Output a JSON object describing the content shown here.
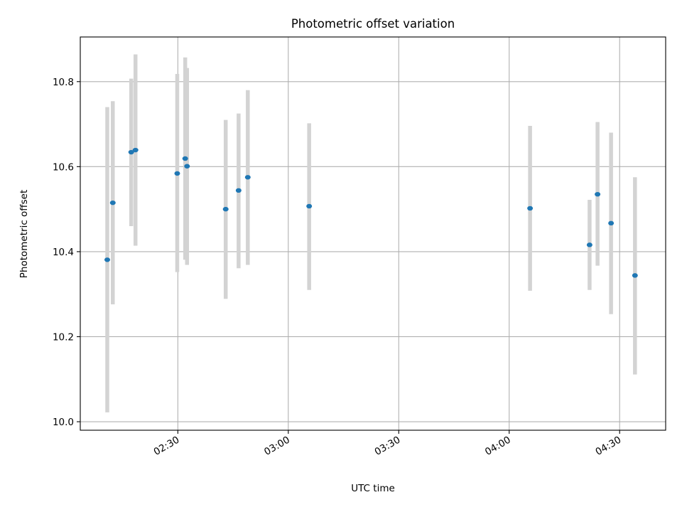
{
  "chart_data": {
    "type": "scatter",
    "title": "Photometric offset variation",
    "xlabel": "UTC time",
    "ylabel": "Photometric offset",
    "x_axis_kind": "time",
    "xlim": [
      "02:03:30",
      "04:42:30"
    ],
    "ylim": [
      9.98,
      10.905
    ],
    "x_ticks": [
      "02:30",
      "03:00",
      "03:30",
      "04:00",
      "04:30"
    ],
    "x_tick_label_rotation_deg": 30,
    "y_ticks": [
      10.0,
      10.2,
      10.4,
      10.6,
      10.8
    ],
    "y_tick_labels": [
      "10.0",
      "10.2",
      "10.4",
      "10.6",
      "10.8"
    ],
    "grid": true,
    "legend": "none",
    "marker_color": "#1f77b4",
    "errorbar_color": "#d3d3d3",
    "series": [
      {
        "points": [
          {
            "x": "02:10:50",
            "y": 10.381,
            "ylow": 10.022,
            "yhigh": 10.74
          },
          {
            "x": "02:12:20",
            "y": 10.515,
            "ylow": 10.276,
            "yhigh": 10.754
          },
          {
            "x": "02:17:20",
            "y": 10.634,
            "ylow": 10.46,
            "yhigh": 10.807
          },
          {
            "x": "02:18:30",
            "y": 10.639,
            "ylow": 10.414,
            "yhigh": 10.864
          },
          {
            "x": "02:29:50",
            "y": 10.584,
            "ylow": 10.352,
            "yhigh": 10.818
          },
          {
            "x": "02:32:00",
            "y": 10.619,
            "ylow": 10.381,
            "yhigh": 10.857
          },
          {
            "x": "02:32:30",
            "y": 10.601,
            "ylow": 10.369,
            "yhigh": 10.832
          },
          {
            "x": "02:43:00",
            "y": 10.5,
            "ylow": 10.289,
            "yhigh": 10.71
          },
          {
            "x": "02:46:30",
            "y": 10.544,
            "ylow": 10.361,
            "yhigh": 10.725
          },
          {
            "x": "02:49:00",
            "y": 10.575,
            "ylow": 10.369,
            "yhigh": 10.78
          },
          {
            "x": "03:05:40",
            "y": 10.507,
            "ylow": 10.31,
            "yhigh": 10.702
          },
          {
            "x": "04:05:40",
            "y": 10.502,
            "ylow": 10.308,
            "yhigh": 10.696
          },
          {
            "x": "04:21:50",
            "y": 10.416,
            "ylow": 10.31,
            "yhigh": 10.522
          },
          {
            "x": "04:24:00",
            "y": 10.535,
            "ylow": 10.367,
            "yhigh": 10.705
          },
          {
            "x": "04:27:40",
            "y": 10.467,
            "ylow": 10.253,
            "yhigh": 10.68
          },
          {
            "x": "04:34:10",
            "y": 10.344,
            "ylow": 10.111,
            "yhigh": 10.575
          }
        ]
      }
    ]
  }
}
